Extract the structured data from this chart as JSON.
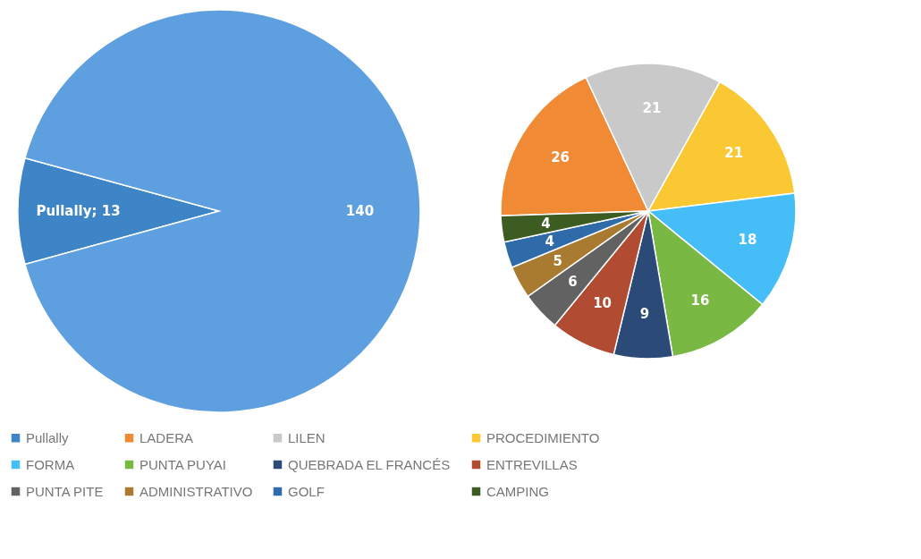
{
  "chart_data": [
    {
      "type": "pie",
      "categories": [
        "Pullally",
        null
      ],
      "values": [
        13,
        140
      ],
      "colors": [
        "#3d85c6",
        "#5e9fdf"
      ],
      "value_labels": [
        "Pullally; 13",
        "140"
      ],
      "legend": "bottom"
    },
    {
      "type": "pie",
      "categories": [
        "LADERA",
        "LILEN",
        "PROCEDIMIENTO",
        "FORMA",
        "PUNTA PUYAI",
        "QUEBRADA EL FRANCÉS",
        "ENTREVILLAS",
        "PUNTA PITE",
        "ADMINISTRATIVO",
        "GOLF",
        "CAMPING"
      ],
      "values": [
        26,
        21,
        21,
        18,
        16,
        9,
        10,
        6,
        5,
        4,
        4
      ],
      "colors": [
        "#f08a35",
        "#c9c9c9",
        "#f9c832",
        "#45bdf6",
        "#78b843",
        "#2b4a78",
        "#b14b31",
        "#626262",
        "#a97b30",
        "#2e6ba8",
        "#3c5c22"
      ],
      "data_labels": true,
      "legend": "bottom"
    }
  ]
}
